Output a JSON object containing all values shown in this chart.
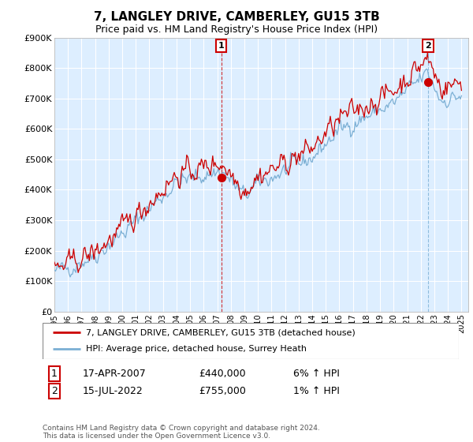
{
  "title": "7, LANGLEY DRIVE, CAMBERLEY, GU15 3TB",
  "subtitle": "Price paid vs. HM Land Registry's House Price Index (HPI)",
  "ylim": [
    0,
    900000
  ],
  "yticks": [
    0,
    100000,
    200000,
    300000,
    400000,
    500000,
    600000,
    700000,
    800000,
    900000
  ],
  "ytick_labels": [
    "£0",
    "£100K",
    "£200K",
    "£300K",
    "£400K",
    "£500K",
    "£600K",
    "£700K",
    "£800K",
    "£900K"
  ],
  "hpi_color": "#7bafd4",
  "price_color": "#cc0000",
  "vline1_color": "#cc0000",
  "vline2_color": "#7bafd4",
  "bg_color": "#ddeeff",
  "annotation1_date": "17-APR-2007",
  "annotation1_price": "£440,000",
  "annotation1_hpi": "6% ↑ HPI",
  "annotation2_date": "15-JUL-2022",
  "annotation2_price": "£755,000",
  "annotation2_hpi": "1% ↑ HPI",
  "legend_label1": "7, LANGLEY DRIVE, CAMBERLEY, GU15 3TB (detached house)",
  "legend_label2": "HPI: Average price, detached house, Surrey Heath",
  "footer": "Contains HM Land Registry data © Crown copyright and database right 2024.\nThis data is licensed under the Open Government Licence v3.0.",
  "purchase1_x": 2007.29,
  "purchase1_y": 440000,
  "purchase2_x": 2022.54,
  "purchase2_y": 755000,
  "xlim_start": 1995,
  "xlim_end": 2025.5
}
